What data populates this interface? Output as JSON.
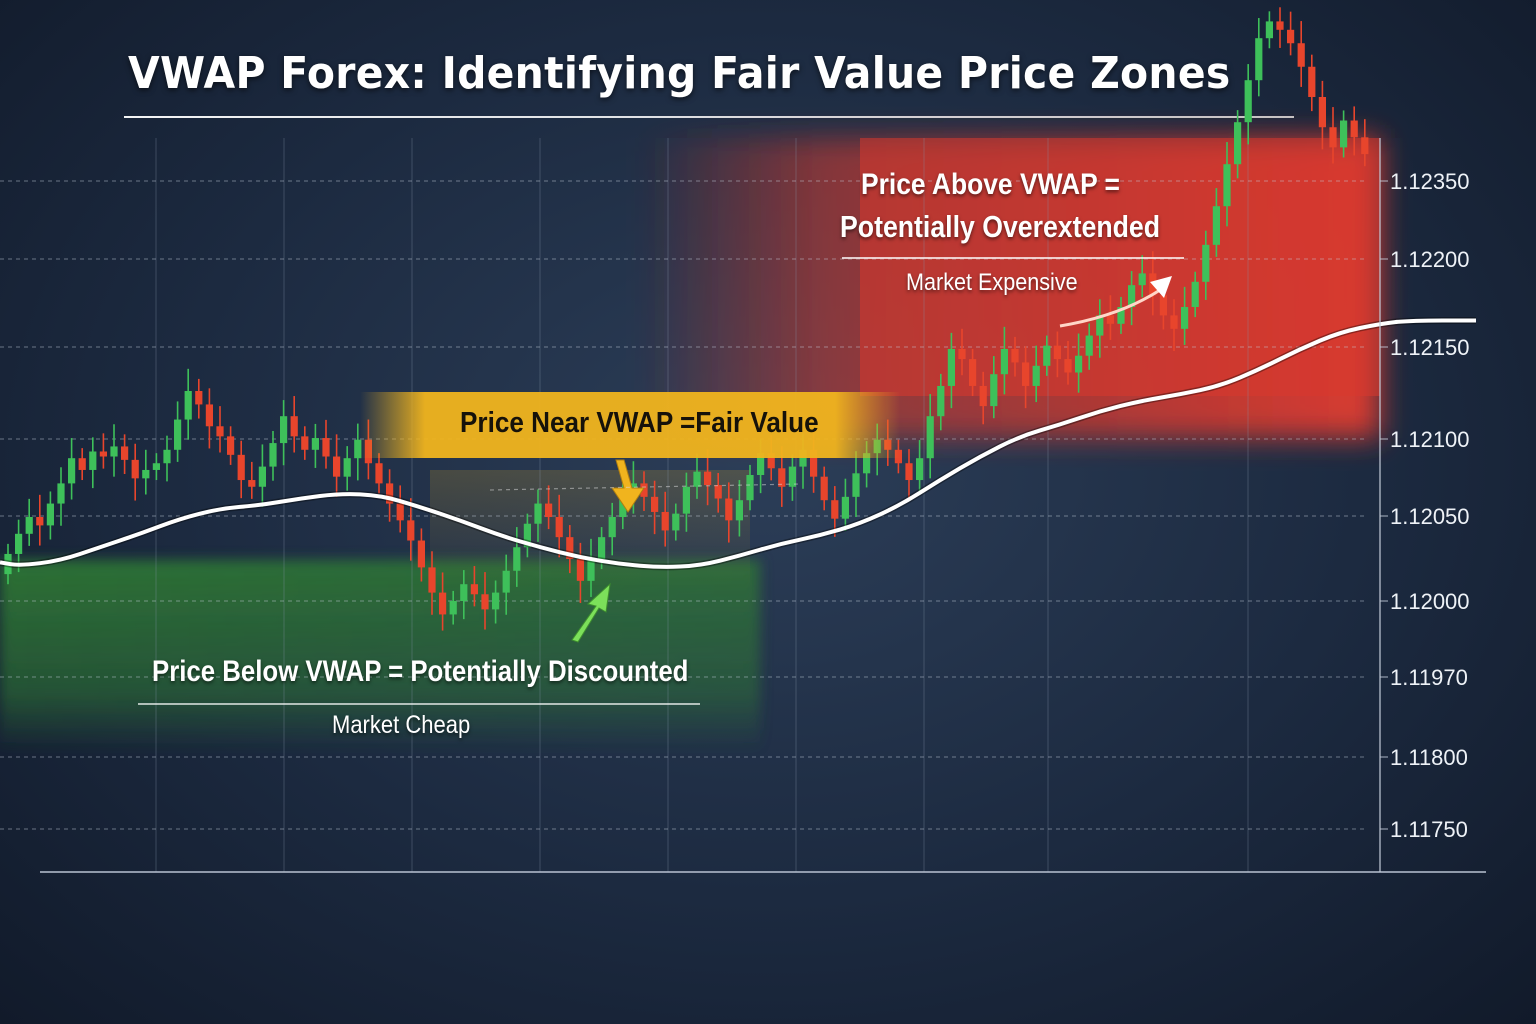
{
  "title": "VWAP Forex: Identifying Fair Value Price Zones",
  "annotations": {
    "above_line1": "Price Above VWAP =",
    "above_line2": "Potentially Overextended",
    "above_sub": "Market Expensive",
    "near": "Price Near VWAP =Fair Value",
    "below": "Price Below VWAP = Potentially Discounted",
    "below_sub": "Market Cheap"
  },
  "colors": {
    "bullish": "#3ec05a",
    "bearish": "#e8452c",
    "vwap": "#ffffff",
    "above_zone": "#d63a2e",
    "near_zone": "#f0b41e",
    "below_zone": "#2f7a34"
  },
  "chart_data": {
    "type": "candlestick",
    "y_tick_labels": [
      "1.12350",
      "1.12200",
      "1.12150",
      "1.12100",
      "1.12050",
      "1.12000",
      "1.11970",
      "1.11800",
      "1.11750"
    ],
    "grid": true,
    "vwap_line": [
      [
        0,
        1.12023
      ],
      [
        20,
        1.12021
      ],
      [
        60,
        1.12024
      ],
      [
        100,
        1.12032
      ],
      [
        140,
        1.1204
      ],
      [
        180,
        1.12049
      ],
      [
        220,
        1.12055
      ],
      [
        260,
        1.12057
      ],
      [
        300,
        1.12061
      ],
      [
        340,
        1.12064
      ],
      [
        380,
        1.12063
      ],
      [
        420,
        1.12056
      ],
      [
        460,
        1.12048
      ],
      [
        500,
        1.12039
      ],
      [
        540,
        1.12032
      ],
      [
        580,
        1.12026
      ],
      [
        620,
        1.12022
      ],
      [
        660,
        1.1202
      ],
      [
        700,
        1.12021
      ],
      [
        740,
        1.12027
      ],
      [
        780,
        1.12034
      ],
      [
        820,
        1.12039
      ],
      [
        860,
        1.12046
      ],
      [
        900,
        1.12057
      ],
      [
        940,
        1.12072
      ],
      [
        980,
        1.12086
      ],
      [
        1020,
        1.12098
      ],
      [
        1060,
        1.12105
      ],
      [
        1100,
        1.12113
      ],
      [
        1140,
        1.12119
      ],
      [
        1180,
        1.12123
      ],
      [
        1220,
        1.12128
      ],
      [
        1260,
        1.12138
      ],
      [
        1300,
        1.1215
      ],
      [
        1340,
        1.1216
      ],
      [
        1380,
        1.12165
      ],
      [
        1410,
        1.12167
      ],
      [
        1476,
        1.12167
      ]
    ],
    "closes": [
      1.12028,
      1.1204,
      1.1205,
      1.12045,
      1.12058,
      1.1207,
      1.12085,
      1.12078,
      1.12089,
      1.12086,
      1.12092,
      1.12084,
      1.12073,
      1.12078,
      1.12082,
      1.1209,
      1.12108,
      1.12125,
      1.12117,
      1.12104,
      1.12098,
      1.12087,
      1.12072,
      1.12068,
      1.1208,
      1.12094,
      1.1211,
      1.12098,
      1.1209,
      1.12097,
      1.12086,
      1.12074,
      1.12085,
      1.12096,
      1.12082,
      1.1207,
      1.12058,
      1.12048,
      1.12036,
      1.1202,
      1.12005,
      1.11992,
      1.12,
      1.1201,
      1.12004,
      1.11995,
      1.12005,
      1.12018,
      1.12032,
      1.12046,
      1.12058,
      1.1205,
      1.12038,
      1.12025,
      1.12012,
      1.12025,
      1.12038,
      1.1205,
      1.12064,
      1.1207,
      1.12062,
      1.12053,
      1.12042,
      1.12052,
      1.12068,
      1.12077,
      1.12069,
      1.12061,
      1.12048,
      1.1206,
      1.12075,
      1.12088,
      1.12079,
      1.12068,
      1.1208,
      1.1209,
      1.12074,
      1.1206,
      1.12049,
      1.12062,
      1.12076,
      1.12088,
      1.12096,
      1.1209,
      1.12082,
      1.12072,
      1.12085,
      1.1211,
      1.12128,
      1.1215,
      1.12144,
      1.12128,
      1.12116,
      1.12135,
      1.1215,
      1.12142,
      1.12128,
      1.1214,
      1.12152,
      1.12144,
      1.12136,
      1.12146,
      1.12158,
      1.1217,
      1.12165,
      1.12175,
      1.12188,
      1.12195,
      1.12182,
      1.1217,
      1.12162,
      1.12175,
      1.1219,
      1.12212,
      1.12235,
      1.1226,
      1.12285,
      1.1231,
      1.12335,
      1.12345,
      1.1234,
      1.12332,
      1.12318,
      1.123,
      1.12282,
      1.1227,
      1.12286,
      1.12276,
      1.12266
    ]
  }
}
